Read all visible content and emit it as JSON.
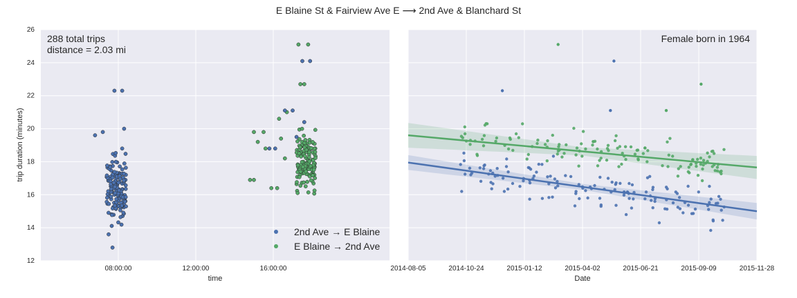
{
  "colors": {
    "blue": "#4c72b0",
    "green": "#55a868",
    "panel": "#eaeaf2",
    "grid": "#ffffff",
    "text": "#262626"
  },
  "figure_title": "E Blaine St & Fairview Ave E  ⟶ 2nd Ave & Blanchard St",
  "chart_data": [
    {
      "type": "scatter",
      "id": "left",
      "ylabel": "trip duration (minutes)",
      "xlabel": "time",
      "ylim": [
        12,
        26
      ],
      "yticks": [
        12,
        14,
        16,
        18,
        20,
        22,
        24,
        26
      ],
      "xlim_hours": [
        4,
        22
      ],
      "xticks": [
        {
          "v": 8,
          "label": "08:00:00"
        },
        {
          "v": 12,
          "label": "12:00:00"
        },
        {
          "v": 16,
          "label": "16:00:00"
        }
      ],
      "annotation": [
        "288 total trips",
        "distance = 2.03 mi"
      ],
      "legend": [
        "2nd Ave → E Blaine",
        "E Blaine → 2nd Ave"
      ],
      "series": [
        {
          "name": "2nd Ave → E Blaine",
          "color": "blue",
          "cluster": {
            "hour_min": 6.8,
            "hour_max": 9.2,
            "core_min": 7.4,
            "core_max": 8.4,
            "dur_min": 12.8,
            "dur_max": 20.0,
            "center": 16.3,
            "count": 145
          },
          "outliers": [
            [
              7.8,
              22.3
            ],
            [
              8.2,
              22.3
            ],
            [
              6.8,
              19.6
            ],
            [
              7.2,
              19.8
            ],
            [
              8.3,
              20.0
            ],
            [
              8.2,
              18.8
            ],
            [
              7.5,
              13.6
            ],
            [
              7.7,
              12.8
            ]
          ]
        },
        {
          "name": "E Blaine → 2nd Ave",
          "color": "green",
          "cluster": {
            "hour_min": 16.6,
            "hour_max": 18.4,
            "core_min": 17.2,
            "core_max": 18.2,
            "dur_min": 14.8,
            "dur_max": 21.5,
            "center": 18.1,
            "count": 135
          },
          "outliers": [
            [
              17.3,
              25.1
            ],
            [
              17.8,
              25.1
            ],
            [
              17.4,
              22.7
            ],
            [
              17.6,
              22.7
            ],
            [
              14.8,
              16.9
            ],
            [
              15.0,
              16.9
            ],
            [
              15.5,
              19.8
            ],
            [
              15.0,
              19.8
            ],
            [
              15.2,
              19.2
            ],
            [
              15.6,
              18.8
            ],
            [
              16.3,
              20.6
            ],
            [
              16.7,
              21.0
            ],
            [
              15.9,
              16.4
            ],
            [
              16.2,
              16.4
            ],
            [
              16.4,
              19.4
            ],
            [
              16.6,
              18.2
            ]
          ]
        }
      ],
      "special_blue_points": [
        [
          17.5,
          24.1
        ],
        [
          17.9,
          24.1
        ],
        [
          16.6,
          21.1
        ],
        [
          17.0,
          21.1
        ],
        [
          15.8,
          18.8
        ],
        [
          16.1,
          18.8
        ],
        [
          17.2,
          19.5
        ],
        [
          17.6,
          20.4
        ]
      ]
    },
    {
      "type": "scatter",
      "id": "right",
      "xlabel": "Date",
      "ylim": [
        12,
        26
      ],
      "annotation": "Female born in 1964",
      "date_range": [
        "2014-08-05",
        "2015-11-28"
      ],
      "xticks": [
        "2014-08-05",
        "2014-10-24",
        "2015-01-12",
        "2015-04-02",
        "2015-06-21",
        "2015-09-09",
        "2015-11-28"
      ],
      "series": [
        {
          "name": "2nd Ave → E Blaine",
          "color": "blue",
          "fit": {
            "start": 17.95,
            "end": 15.0,
            "band_start": 0.45,
            "band_mid": 0.18,
            "band_end": 0.5
          }
        },
        {
          "name": "E Blaine → 2nd Ave",
          "color": "green",
          "fit": {
            "start": 19.6,
            "end": 17.65,
            "band_start": 0.75,
            "band_mid": 0.25,
            "band_end": 0.7
          }
        }
      ]
    }
  ]
}
